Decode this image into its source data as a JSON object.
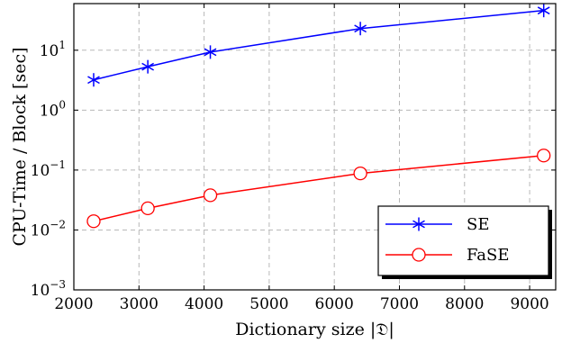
{
  "chart_data": {
    "type": "line",
    "xlabel": "Dictionary size |𝔇|",
    "ylabel": "CPU-Time / Block [sec]",
    "xlim": [
      2000,
      9400
    ],
    "ylim": [
      0.001,
      60
    ],
    "yscale": "log",
    "grid": true,
    "legend_position": "bottom-right",
    "x_ticks": [
      2000,
      3000,
      4000,
      5000,
      6000,
      7000,
      8000,
      9000
    ],
    "x_tick_labels": [
      "2000",
      "3000",
      "4000",
      "5000",
      "6000",
      "7000",
      "8000",
      "9000"
    ],
    "y_ticks": [
      {
        "value": 0.001,
        "base": "10",
        "exp": "−3"
      },
      {
        "value": 0.01,
        "base": "10",
        "exp": "−2"
      },
      {
        "value": 0.1,
        "base": "10",
        "exp": "−1"
      },
      {
        "value": 1,
        "base": "10",
        "exp": "0"
      },
      {
        "value": 10,
        "base": "10",
        "exp": "1"
      }
    ],
    "x": [
      2304,
      3136,
      4096,
      6400,
      9216
    ],
    "series": [
      {
        "name": "SE",
        "color": "#0000ff",
        "marker": "asterisk",
        "values": [
          3.2,
          5.3,
          9.3,
          23,
          46
        ]
      },
      {
        "name": "FaSE",
        "color": "#ff0000",
        "marker": "circle",
        "values": [
          0.014,
          0.023,
          0.038,
          0.088,
          0.175
        ]
      }
    ]
  }
}
